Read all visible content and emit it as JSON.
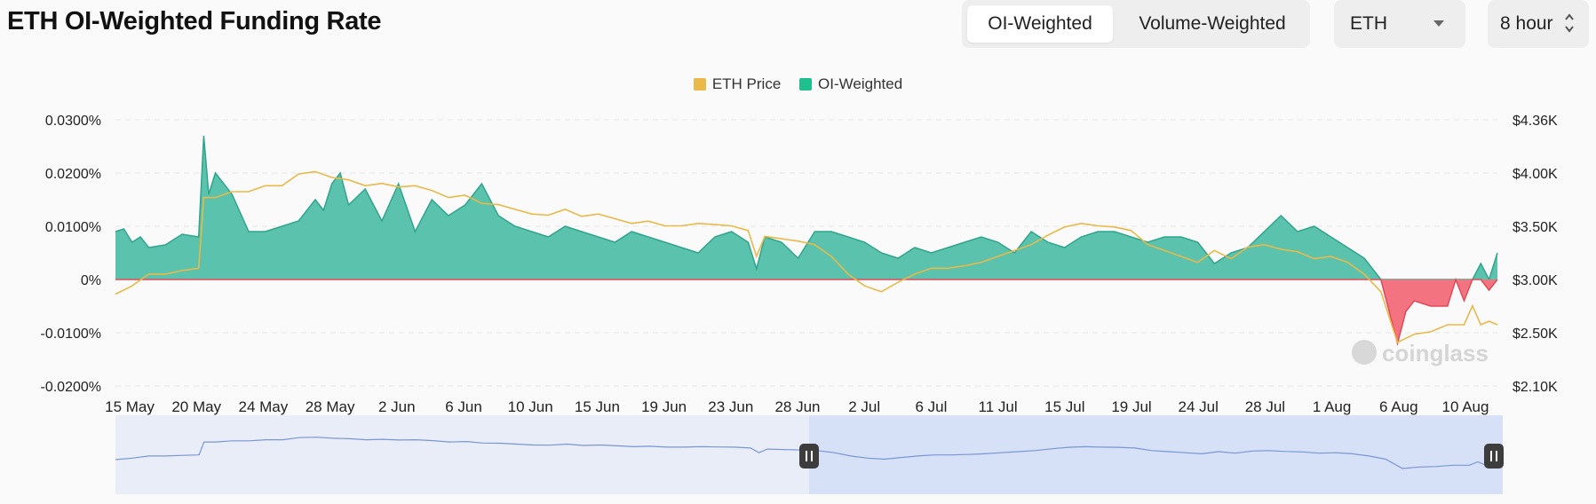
{
  "header": {
    "title": "ETH OI-Weighted Funding Rate",
    "toggle": [
      "OI-Weighted",
      "Volume-Weighted"
    ],
    "active_toggle": "OI-Weighted",
    "symbol_select": "ETH",
    "interval_select": "8 hour"
  },
  "colors": {
    "price": "#e9b949",
    "positive_fill": "#5bc2ae",
    "positive_line": "#2fa58c",
    "negative_fill": "#f37380",
    "negative_line": "#e04a58",
    "navigator_line": "#7a96d6",
    "navigator_selection": "#d6e0f7"
  },
  "watermark": "coinglass",
  "chart_data": {
    "type": "area",
    "legend": [
      "ETH Price",
      "OI-Weighted"
    ],
    "legend_position": "top-center",
    "x_categories": [
      "15 May",
      "20 May",
      "24 May",
      "28 May",
      "2 Jun",
      "6 Jun",
      "10 Jun",
      "15 Jun",
      "19 Jun",
      "23 Jun",
      "28 Jun",
      "2 Jul",
      "6 Jul",
      "11 Jul",
      "15 Jul",
      "19 Jul",
      "24 Jul",
      "28 Jul",
      "1 Aug",
      "6 Aug",
      "10 Aug"
    ],
    "y_left": {
      "ticks": [
        "0.0300%",
        "0.0200%",
        "0.0100%",
        "0%",
        "-0.0100%",
        "-0.0200%"
      ],
      "min": -0.02,
      "max": 0.03,
      "unit": "%"
    },
    "y_right": {
      "ticks": [
        "$4.36K",
        "$4.00K",
        "$3.50K",
        "$3.00K",
        "$2.50K",
        "$2.10K"
      ],
      "min": 2100,
      "max": 4360,
      "unit": "USD"
    },
    "grid": true,
    "series": [
      {
        "name": "OI-Weighted",
        "axis": "left",
        "points": [
          [
            0,
            0.009
          ],
          [
            0.5,
            0.0095
          ],
          [
            1,
            0.007
          ],
          [
            1.5,
            0.008
          ],
          [
            2,
            0.006
          ],
          [
            3,
            0.0065
          ],
          [
            4,
            0.0085
          ],
          [
            5,
            0.008
          ],
          [
            5.3,
            0.027
          ],
          [
            5.6,
            0.016
          ],
          [
            6,
            0.02
          ],
          [
            6.5,
            0.018
          ],
          [
            7,
            0.016
          ],
          [
            8,
            0.009
          ],
          [
            9,
            0.009
          ],
          [
            10,
            0.01
          ],
          [
            11,
            0.011
          ],
          [
            12,
            0.015
          ],
          [
            12.5,
            0.013
          ],
          [
            13,
            0.018
          ],
          [
            13.5,
            0.02
          ],
          [
            14,
            0.014
          ],
          [
            15,
            0.017
          ],
          [
            16,
            0.011
          ],
          [
            17,
            0.018
          ],
          [
            18,
            0.009
          ],
          [
            19,
            0.015
          ],
          [
            20,
            0.012
          ],
          [
            21,
            0.014
          ],
          [
            22,
            0.018
          ],
          [
            23,
            0.012
          ],
          [
            24,
            0.01
          ],
          [
            25,
            0.009
          ],
          [
            26,
            0.008
          ],
          [
            27,
            0.01
          ],
          [
            28,
            0.009
          ],
          [
            29,
            0.008
          ],
          [
            30,
            0.007
          ],
          [
            31,
            0.009
          ],
          [
            32,
            0.008
          ],
          [
            33,
            0.007
          ],
          [
            34,
            0.006
          ],
          [
            35,
            0.005
          ],
          [
            36,
            0.008
          ],
          [
            37,
            0.009
          ],
          [
            38,
            0.007
          ],
          [
            38.5,
            0.002
          ],
          [
            39,
            0.008
          ],
          [
            40,
            0.007
          ],
          [
            41,
            0.004
          ],
          [
            42,
            0.009
          ],
          [
            43,
            0.009
          ],
          [
            44,
            0.008
          ],
          [
            45,
            0.007
          ],
          [
            46,
            0.005
          ],
          [
            47,
            0.004
          ],
          [
            48,
            0.006
          ],
          [
            49,
            0.005
          ],
          [
            50,
            0.006
          ],
          [
            51,
            0.007
          ],
          [
            52,
            0.008
          ],
          [
            53,
            0.007
          ],
          [
            54,
            0.005
          ],
          [
            55,
            0.009
          ],
          [
            56,
            0.007
          ],
          [
            57,
            0.006
          ],
          [
            58,
            0.008
          ],
          [
            59,
            0.009
          ],
          [
            60,
            0.009
          ],
          [
            61,
            0.008
          ],
          [
            62,
            0.007
          ],
          [
            63,
            0.008
          ],
          [
            64,
            0.008
          ],
          [
            65,
            0.007
          ],
          [
            66,
            0.003
          ],
          [
            67,
            0.005
          ],
          [
            68,
            0.006
          ],
          [
            69,
            0.009
          ],
          [
            70,
            0.012
          ],
          [
            71,
            0.009
          ],
          [
            72,
            0.01
          ],
          [
            73,
            0.008
          ],
          [
            74,
            0.006
          ],
          [
            75,
            0.004
          ],
          [
            76,
            0.0
          ],
          [
            77,
            -0.012
          ],
          [
            77.5,
            -0.006
          ],
          [
            78,
            -0.004
          ],
          [
            79,
            -0.005
          ],
          [
            80,
            -0.005
          ],
          [
            80.5,
            0.0
          ],
          [
            81,
            -0.004
          ],
          [
            81.5,
            0.0
          ],
          [
            82,
            0.003
          ],
          [
            82.5,
            -0.002
          ],
          [
            83,
            0.005
          ]
        ]
      },
      {
        "name": "ETH Price",
        "axis": "right",
        "points": [
          [
            0,
            2880
          ],
          [
            1,
            2950
          ],
          [
            2,
            3050
          ],
          [
            3,
            3050
          ],
          [
            4,
            3080
          ],
          [
            5,
            3100
          ],
          [
            5.3,
            3700
          ],
          [
            6,
            3700
          ],
          [
            7,
            3750
          ],
          [
            8,
            3750
          ],
          [
            9,
            3800
          ],
          [
            10,
            3800
          ],
          [
            11,
            3900
          ],
          [
            12,
            3920
          ],
          [
            13,
            3870
          ],
          [
            14,
            3850
          ],
          [
            15,
            3800
          ],
          [
            16,
            3820
          ],
          [
            17,
            3790
          ],
          [
            18,
            3800
          ],
          [
            19,
            3760
          ],
          [
            20,
            3700
          ],
          [
            21,
            3720
          ],
          [
            22,
            3650
          ],
          [
            23,
            3640
          ],
          [
            24,
            3600
          ],
          [
            25,
            3560
          ],
          [
            26,
            3550
          ],
          [
            27,
            3600
          ],
          [
            28,
            3540
          ],
          [
            29,
            3560
          ],
          [
            30,
            3520
          ],
          [
            31,
            3480
          ],
          [
            32,
            3500
          ],
          [
            33,
            3460
          ],
          [
            34,
            3460
          ],
          [
            35,
            3480
          ],
          [
            36,
            3470
          ],
          [
            37,
            3460
          ],
          [
            38,
            3420
          ],
          [
            38.5,
            3200
          ],
          [
            39,
            3370
          ],
          [
            40,
            3350
          ],
          [
            41,
            3330
          ],
          [
            42,
            3300
          ],
          [
            43,
            3200
          ],
          [
            44,
            3050
          ],
          [
            45,
            2950
          ],
          [
            46,
            2900
          ],
          [
            47,
            2980
          ],
          [
            48,
            3050
          ],
          [
            49,
            3100
          ],
          [
            50,
            3100
          ],
          [
            51,
            3120
          ],
          [
            52,
            3150
          ],
          [
            53,
            3200
          ],
          [
            54,
            3250
          ],
          [
            55,
            3300
          ],
          [
            56,
            3380
          ],
          [
            57,
            3450
          ],
          [
            58,
            3480
          ],
          [
            59,
            3460
          ],
          [
            60,
            3450
          ],
          [
            61,
            3420
          ],
          [
            62,
            3300
          ],
          [
            63,
            3250
          ],
          [
            64,
            3200
          ],
          [
            65,
            3150
          ],
          [
            66,
            3250
          ],
          [
            67,
            3180
          ],
          [
            68,
            3280
          ],
          [
            69,
            3300
          ],
          [
            70,
            3260
          ],
          [
            71,
            3240
          ],
          [
            72,
            3180
          ],
          [
            73,
            3200
          ],
          [
            74,
            3150
          ],
          [
            75,
            3050
          ],
          [
            76,
            2900
          ],
          [
            77,
            2470
          ],
          [
            78,
            2540
          ],
          [
            79,
            2560
          ],
          [
            80,
            2620
          ],
          [
            81,
            2620
          ],
          [
            81.5,
            2780
          ],
          [
            82,
            2620
          ],
          [
            82.5,
            2650
          ],
          [
            83,
            2620
          ]
        ]
      }
    ],
    "navigator": {
      "selection_start_fraction": 0.5,
      "selection_end_fraction": 1.0
    }
  }
}
